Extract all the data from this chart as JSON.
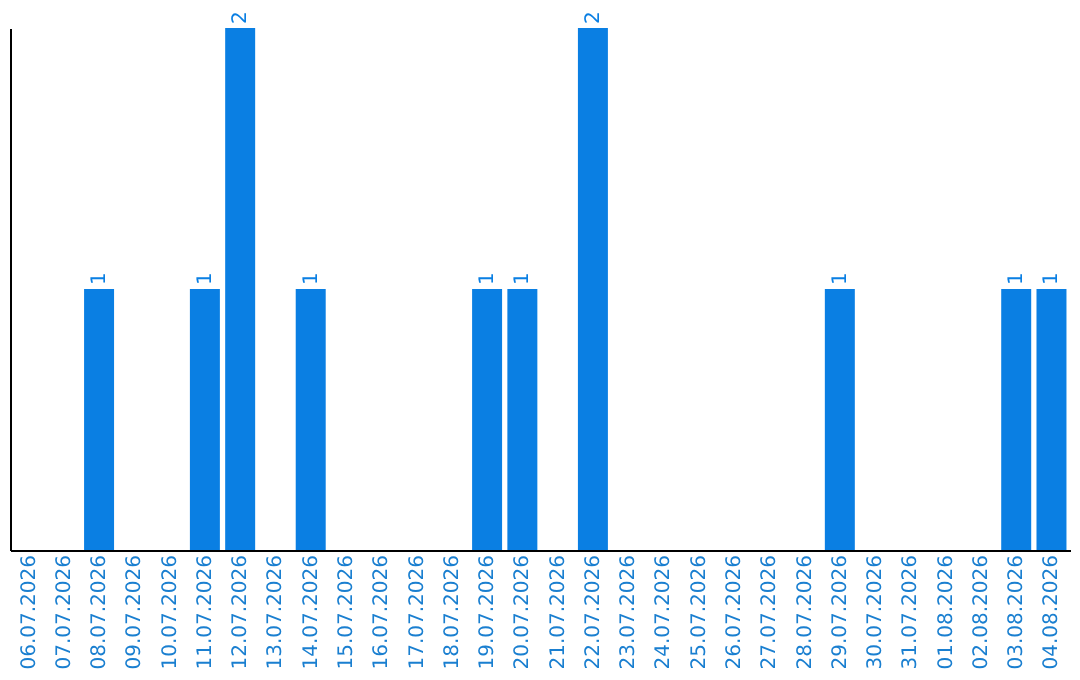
{
  "chart_data": {
    "type": "bar",
    "categories": [
      "06.07.2026",
      "07.07.2026",
      "08.07.2026",
      "09.07.2026",
      "10.07.2026",
      "11.07.2026",
      "12.07.2026",
      "13.07.2026",
      "14.07.2026",
      "15.07.2026",
      "16.07.2026",
      "17.07.2026",
      "18.07.2026",
      "19.07.2026",
      "20.07.2026",
      "21.07.2026",
      "22.07.2026",
      "23.07.2026",
      "24.07.2026",
      "25.07.2026",
      "26.07.2026",
      "27.07.2026",
      "28.07.2026",
      "29.07.2026",
      "30.07.2026",
      "31.07.2026",
      "01.08.2026",
      "02.08.2026",
      "03.08.2026",
      "04.08.2026"
    ],
    "values": [
      0,
      0,
      1,
      0,
      0,
      1,
      2,
      0,
      1,
      0,
      0,
      0,
      0,
      1,
      1,
      0,
      2,
      0,
      0,
      0,
      0,
      0,
      0,
      1,
      0,
      0,
      0,
      0,
      1,
      1
    ],
    "value_labels": [
      null,
      null,
      "1",
      null,
      null,
      "1",
      "2",
      null,
      "1",
      null,
      null,
      null,
      null,
      "1",
      "1",
      null,
      "2",
      null,
      null,
      null,
      null,
      null,
      null,
      "1",
      null,
      null,
      null,
      null,
      "1",
      "1"
    ],
    "color": "#0a7fe3",
    "tick_labels": "x",
    "grid": false
  }
}
